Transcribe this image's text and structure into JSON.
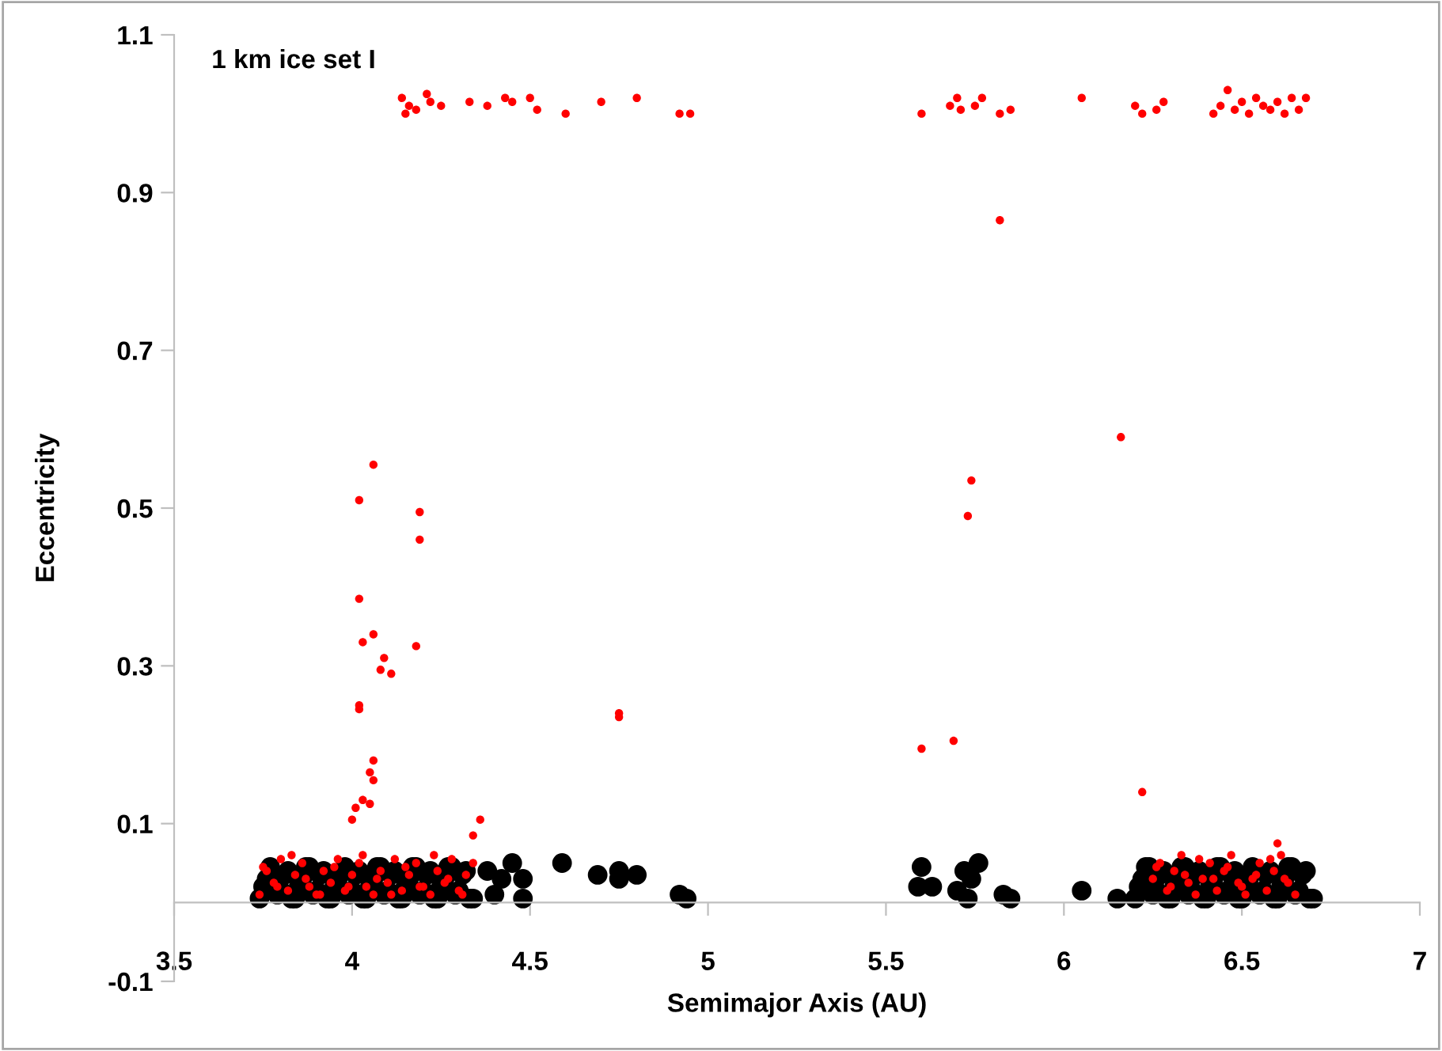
{
  "chart_data": {
    "type": "scatter",
    "xlabel": "Semimajor Axis (AU)",
    "ylabel": "Eccentricity",
    "annotations": [
      "1 km ice set I"
    ],
    "xlim": [
      3.5,
      7
    ],
    "ylim": [
      -0.1,
      1.1
    ],
    "xticks": [
      3.5,
      4,
      4.5,
      5,
      5.5,
      6,
      6.5,
      7
    ],
    "yticks": [
      -0.1,
      0.1,
      0.3,
      0.5,
      0.7,
      0.9,
      1.1
    ],
    "grid": false,
    "legend": false,
    "marker": "circle",
    "series": [
      {
        "color": "#000000",
        "x": [
          3.74,
          3.76,
          3.8,
          3.82,
          3.84,
          3.86,
          3.88,
          3.9,
          3.92,
          3.94,
          3.96,
          3.98,
          4.0,
          4.02,
          4.04,
          4.06,
          4.08,
          4.1,
          4.12,
          4.14,
          4.16,
          4.18,
          4.2,
          4.22,
          4.24,
          4.26,
          4.28,
          4.3,
          4.32,
          4.34,
          3.75,
          3.77,
          3.79,
          3.81,
          3.83,
          3.85,
          3.87,
          3.89,
          3.91,
          3.93,
          3.95,
          3.99,
          4.01,
          4.03,
          4.05,
          4.07,
          4.09,
          4.11,
          4.13,
          4.15,
          4.17,
          4.19,
          4.21,
          4.23,
          4.25,
          4.27,
          4.29,
          4.31,
          4.33,
          4.38,
          4.42,
          4.45,
          4.48,
          4.4,
          4.48,
          4.59,
          4.69,
          4.75,
          4.75,
          4.8,
          4.92,
          4.94,
          5.6,
          5.59,
          5.63,
          5.7,
          5.72,
          5.73,
          5.76,
          5.74,
          5.83,
          5.85,
          6.05,
          6.15,
          6.2,
          6.22,
          6.24,
          6.26,
          6.28,
          6.3,
          6.32,
          6.34,
          6.36,
          6.38,
          6.4,
          6.42,
          6.44,
          6.46,
          6.48,
          6.5,
          6.52,
          6.56,
          6.58,
          6.6,
          6.62,
          6.64,
          6.66,
          6.68,
          6.7,
          6.21,
          6.23,
          6.25,
          6.27,
          6.29,
          6.31,
          6.33,
          6.35,
          6.37,
          6.39,
          6.41,
          6.43,
          6.45,
          6.47,
          6.49,
          6.51,
          6.53,
          6.55,
          6.57,
          6.59,
          6.61,
          6.63,
          6.65,
          6.67,
          6.69
        ],
        "values": [
          0.005,
          0.03,
          0.015,
          0.04,
          0.005,
          0.03,
          0.045,
          0.015,
          0.04,
          0.005,
          0.03,
          0.045,
          0.015,
          0.04,
          0.005,
          0.03,
          0.045,
          0.015,
          0.04,
          0.005,
          0.03,
          0.045,
          0.015,
          0.04,
          0.005,
          0.03,
          0.045,
          0.015,
          0.04,
          0.005,
          0.02,
          0.045,
          0.01,
          0.035,
          0.005,
          0.02,
          0.045,
          0.01,
          0.035,
          0.005,
          0.02,
          0.01,
          0.035,
          0.005,
          0.02,
          0.045,
          0.01,
          0.035,
          0.005,
          0.02,
          0.045,
          0.01,
          0.035,
          0.005,
          0.02,
          0.045,
          0.01,
          0.035,
          0.005,
          0.04,
          0.03,
          0.05,
          0.03,
          0.01,
          0.005,
          0.05,
          0.035,
          0.03,
          0.04,
          0.035,
          0.01,
          0.005,
          0.045,
          0.02,
          0.02,
          0.015,
          0.04,
          0.005,
          0.05,
          0.03,
          0.01,
          0.005,
          0.015,
          0.005,
          0.005,
          0.03,
          0.045,
          0.015,
          0.04,
          0.005,
          0.03,
          0.045,
          0.015,
          0.04,
          0.005,
          0.03,
          0.045,
          0.015,
          0.04,
          0.005,
          0.03,
          0.015,
          0.04,
          0.005,
          0.03,
          0.045,
          0.015,
          0.04,
          0.005,
          0.02,
          0.045,
          0.01,
          0.035,
          0.005,
          0.02,
          0.045,
          0.01,
          0.035,
          0.005,
          0.02,
          0.045,
          0.01,
          0.035,
          0.005,
          0.02,
          0.045,
          0.01,
          0.035,
          0.005,
          0.02,
          0.045,
          0.01,
          0.035,
          0.005
        ]
      },
      {
        "color": "#ff0000",
        "x": [
          4.14,
          4.15,
          4.16,
          4.18,
          4.21,
          4.22,
          4.25,
          4.33,
          4.38,
          4.43,
          4.45,
          4.5,
          4.52,
          4.6,
          4.7,
          4.8,
          4.92,
          4.95,
          5.6,
          5.68,
          5.7,
          5.71,
          5.75,
          5.77,
          5.82,
          5.85,
          6.05,
          6.2,
          6.22,
          6.26,
          6.28,
          6.42,
          6.44,
          6.46,
          6.48,
          6.5,
          6.52,
          6.54,
          6.56,
          6.58,
          6.6,
          6.62,
          6.64,
          6.66,
          6.68,
          4.02,
          4.06,
          4.19,
          4.19,
          4.02,
          4.03,
          4.06,
          4.18,
          4.09,
          4.11,
          4.08,
          4.02,
          4.02,
          4.75,
          4.75,
          5.82,
          5.74,
          5.73,
          6.16,
          5.6,
          5.69,
          6.22,
          4.06,
          4.05,
          4.06,
          4.03,
          4.05,
          4.01,
          4.0,
          4.36,
          4.34,
          6.6,
          3.74,
          3.76,
          3.78,
          3.8,
          3.82,
          3.84,
          3.86,
          3.88,
          3.9,
          3.92,
          3.94,
          3.96,
          3.98,
          4.0,
          4.02,
          4.04,
          4.06,
          4.08,
          4.1,
          4.12,
          4.14,
          4.16,
          4.18,
          4.2,
          4.22,
          4.24,
          4.26,
          4.28,
          4.3,
          4.32,
          4.34,
          3.75,
          3.79,
          3.83,
          3.87,
          3.91,
          3.95,
          3.99,
          4.03,
          4.07,
          4.11,
          4.15,
          4.19,
          4.23,
          4.27,
          4.31,
          6.25,
          6.27,
          6.29,
          6.31,
          6.33,
          6.35,
          6.37,
          6.39,
          6.41,
          6.43,
          6.45,
          6.47,
          6.49,
          6.51,
          6.53,
          6.55,
          6.57,
          6.59,
          6.61,
          6.63,
          6.65,
          6.26,
          6.3,
          6.34,
          6.38,
          6.42,
          6.46,
          6.5,
          6.54,
          6.58,
          6.62
        ],
        "values": [
          1.02,
          1.0,
          1.01,
          1.005,
          1.025,
          1.015,
          1.01,
          1.015,
          1.01,
          1.02,
          1.015,
          1.02,
          1.005,
          1.0,
          1.015,
          1.02,
          1.0,
          1.0,
          1.0,
          1.01,
          1.02,
          1.005,
          1.01,
          1.02,
          1.0,
          1.005,
          1.02,
          1.01,
          1.0,
          1.005,
          1.015,
          1.0,
          1.01,
          1.03,
          1.005,
          1.015,
          1.0,
          1.02,
          1.01,
          1.005,
          1.015,
          1.0,
          1.02,
          1.005,
          1.02,
          0.51,
          0.555,
          0.495,
          0.46,
          0.385,
          0.33,
          0.34,
          0.325,
          0.31,
          0.29,
          0.295,
          0.25,
          0.245,
          0.24,
          0.235,
          0.865,
          0.535,
          0.49,
          0.59,
          0.195,
          0.205,
          0.14,
          0.18,
          0.165,
          0.155,
          0.13,
          0.125,
          0.12,
          0.105,
          0.105,
          0.085,
          0.075,
          0.01,
          0.04,
          0.025,
          0.055,
          0.015,
          0.035,
          0.05,
          0.02,
          0.01,
          0.04,
          0.025,
          0.055,
          0.015,
          0.035,
          0.05,
          0.02,
          0.01,
          0.04,
          0.025,
          0.055,
          0.015,
          0.035,
          0.05,
          0.02,
          0.01,
          0.04,
          0.025,
          0.055,
          0.015,
          0.035,
          0.05,
          0.045,
          0.02,
          0.06,
          0.03,
          0.01,
          0.045,
          0.02,
          0.06,
          0.03,
          0.01,
          0.045,
          0.02,
          0.06,
          0.03,
          0.01,
          0.03,
          0.05,
          0.015,
          0.04,
          0.06,
          0.025,
          0.01,
          0.03,
          0.05,
          0.015,
          0.04,
          0.06,
          0.025,
          0.01,
          0.03,
          0.05,
          0.015,
          0.04,
          0.06,
          0.025,
          0.01,
          0.045,
          0.02,
          0.035,
          0.055,
          0.03,
          0.045,
          0.02,
          0.035,
          0.055,
          0.03
        ]
      }
    ]
  }
}
